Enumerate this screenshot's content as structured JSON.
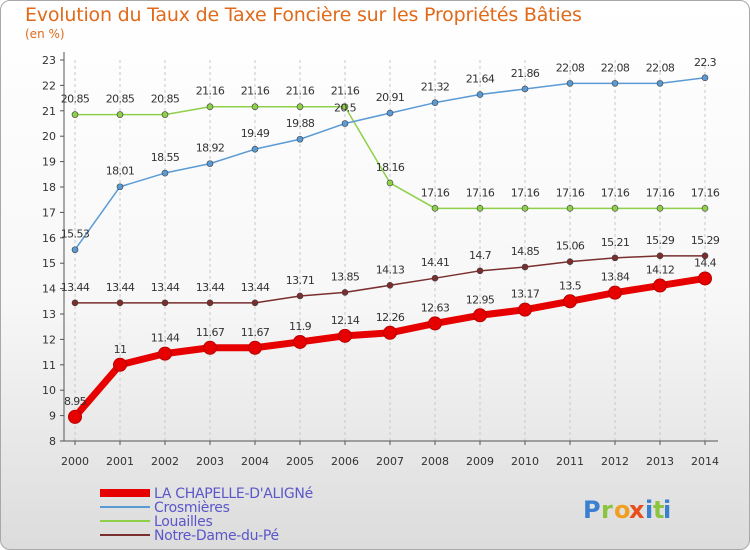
{
  "header": {
    "title": "Evolution du Taux de Taxe Foncière sur les Propriétés Bâties",
    "unit": "(en %)"
  },
  "logo": {
    "text": "Proxiti"
  },
  "colors": {
    "LA CHAPELLE-D'ALIGNé": "#e60000",
    "Crosmières": "#5b9bd5",
    "Louailles": "#8fd04a",
    "Notre-Dame-du-Pé": "#7a2e2e"
  },
  "chart_data": {
    "type": "line",
    "title": "Evolution du Taux de Taxe Foncière sur les Propriétés Bâties",
    "ylabel": "(en %)",
    "x": [
      "2000",
      "2001",
      "2002",
      "2003",
      "2004",
      "2005",
      "2006",
      "2007",
      "2008",
      "2009",
      "2010",
      "2011",
      "2012",
      "2013",
      "2014"
    ],
    "ylim": [
      8,
      23
    ],
    "yticks": [
      "8",
      "9",
      "10",
      "11",
      "12",
      "13",
      "14",
      "15",
      "16",
      "17",
      "18",
      "19",
      "20",
      "21",
      "22",
      "23"
    ],
    "grid": "vertical dashed",
    "legend": "bottom-left",
    "series": [
      {
        "name": "LA CHAPELLE-D'ALIGNé",
        "values": [
          8.95,
          11,
          11.44,
          11.67,
          11.67,
          11.9,
          12.14,
          12.26,
          12.63,
          12.95,
          13.17,
          13.5,
          13.84,
          14.12,
          14.4
        ],
        "labels": [
          "8.95",
          "11",
          "11.44",
          "11.67",
          "11.67",
          "11.9",
          "12.14",
          "12.26",
          "12.63",
          "12.95",
          "13.17",
          "13.5",
          "13.84",
          "14.12",
          "14.4"
        ]
      },
      {
        "name": "Crosmières",
        "values": [
          15.53,
          18.01,
          18.55,
          18.92,
          19.49,
          19.88,
          20.5,
          20.91,
          21.32,
          21.64,
          21.86,
          22.08,
          22.08,
          22.08,
          22.3
        ],
        "labels": [
          "15.53",
          "18.01",
          "18.55",
          "18.92",
          "19.49",
          "19.88",
          "20.5",
          "20.91",
          "21.32",
          "21.64",
          "21.86",
          "22.08",
          "22.08",
          "22.08",
          "22.3"
        ]
      },
      {
        "name": "Louailles",
        "values": [
          20.85,
          20.85,
          20.85,
          21.16,
          21.16,
          21.16,
          21.16,
          18.16,
          17.16,
          17.16,
          17.16,
          17.16,
          17.16,
          17.16,
          17.16
        ],
        "labels": [
          "20.85",
          "20.85",
          "20.85",
          "21.16",
          "21.16",
          "21.16",
          "21.16",
          "18.16",
          "17.16",
          "17.16",
          "17.16",
          "17.16",
          "17.16",
          "17.16",
          "17.16"
        ]
      },
      {
        "name": "Notre-Dame-du-Pé",
        "values": [
          13.44,
          13.44,
          13.44,
          13.44,
          13.44,
          13.71,
          13.85,
          14.13,
          14.41,
          14.7,
          14.85,
          15.06,
          15.21,
          15.29,
          15.29
        ],
        "labels": [
          "13.44",
          "13.44",
          "13.44",
          "13.44",
          "13.44",
          "13.71",
          "13.85",
          "14.13",
          "14.41",
          "14.7",
          "14.85",
          "15.06",
          "15.21",
          "15.29",
          "15.29"
        ]
      }
    ]
  }
}
